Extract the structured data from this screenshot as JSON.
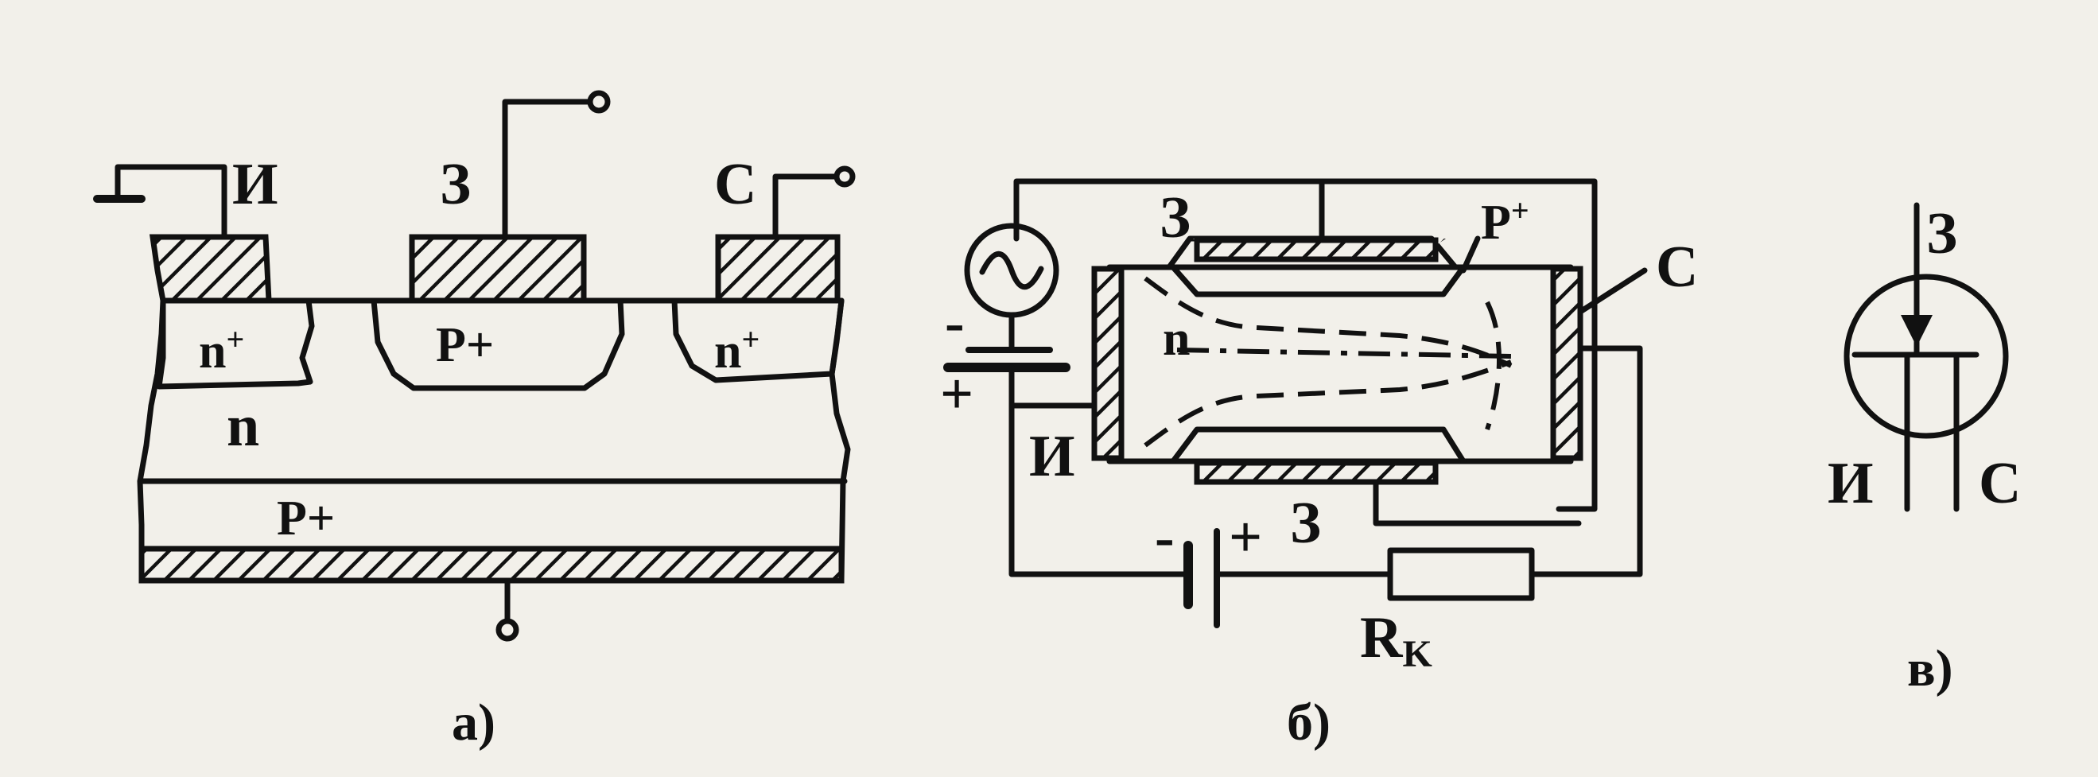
{
  "diagram_a": {
    "source_label": "И",
    "gate_label": "З",
    "drain_label": "С",
    "n_plus_left": "n",
    "n_plus_right": "n",
    "plus_sup": "+",
    "p_plus_gate": "P+",
    "n_region": "n",
    "p_plus_bottom": "P+",
    "caption": "а)"
  },
  "diagram_b": {
    "gate_top_label": "З",
    "p_plus_label": "P",
    "p_plus_sup": "+",
    "drain_label": "С",
    "n_label": "n",
    "source_label": "И",
    "gate_bottom_label": "З",
    "battery_left_minus": "-",
    "battery_left_plus": "+",
    "battery_bottom_minus": "-",
    "battery_bottom_plus": "+",
    "resistor_label": "R",
    "resistor_sub": "K",
    "caption": "б)"
  },
  "diagram_c": {
    "gate_label": "З",
    "source_label": "И",
    "drain_label": "С",
    "caption": "в)"
  }
}
